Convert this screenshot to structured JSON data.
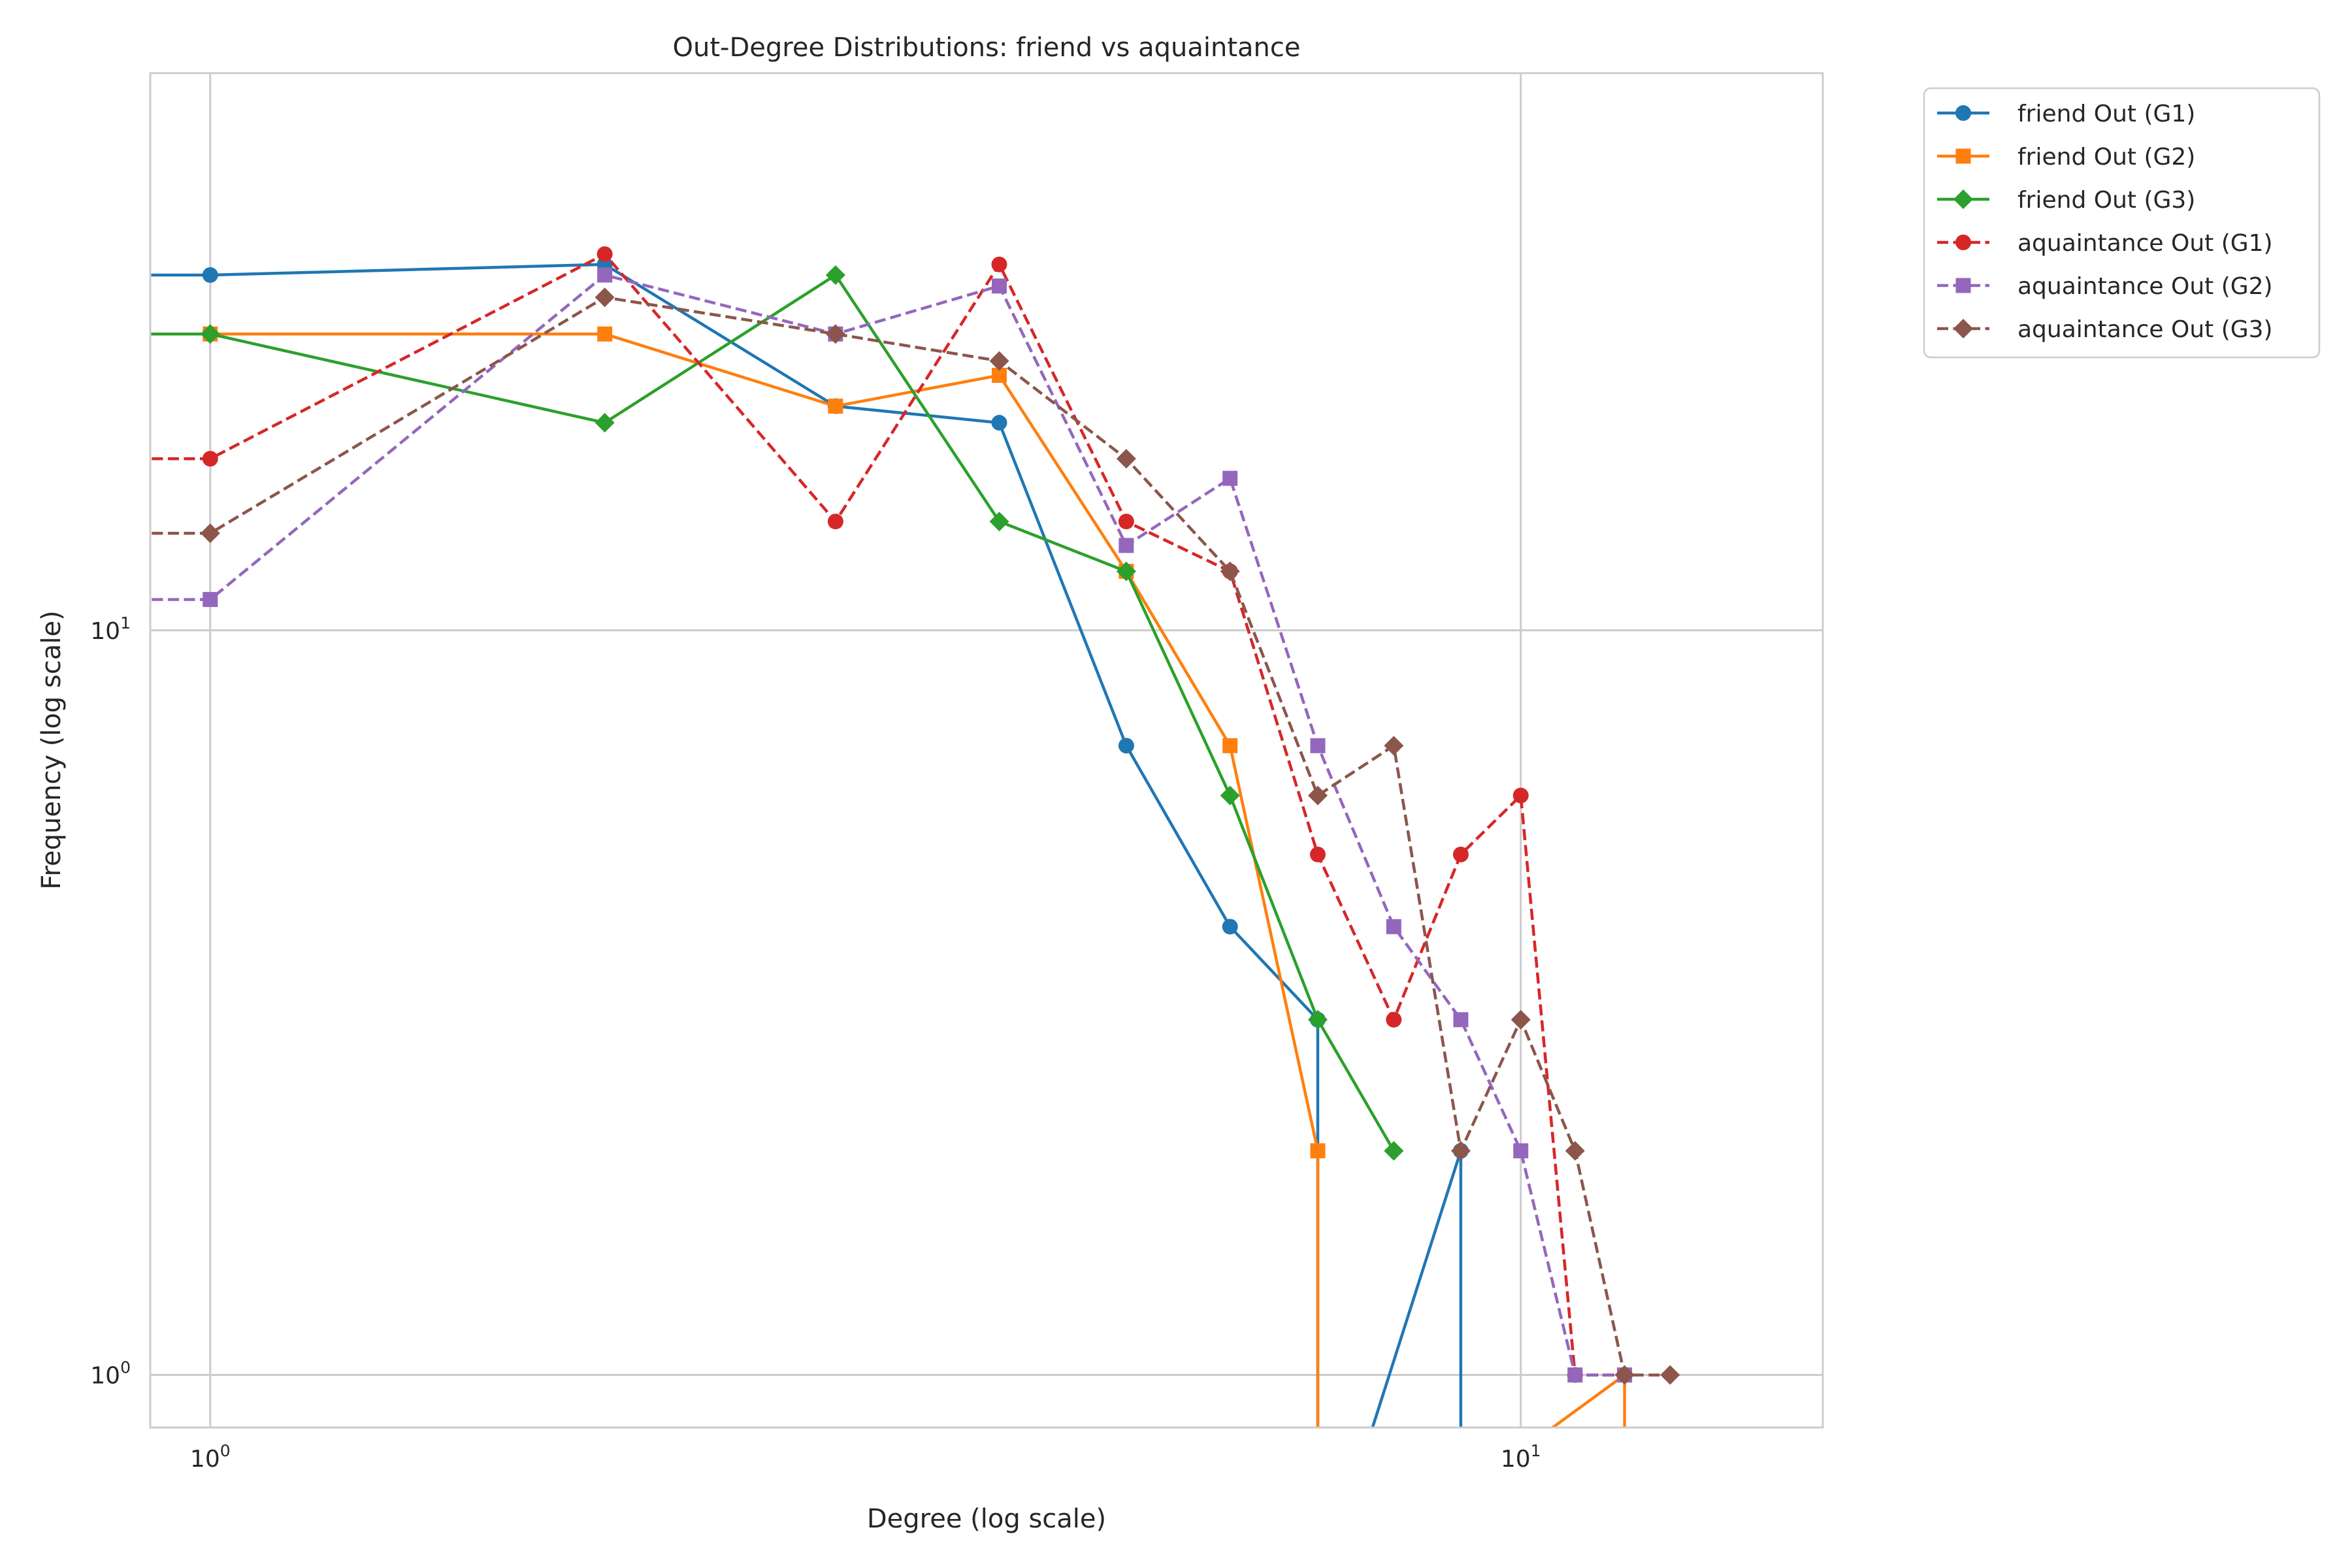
{
  "chart_data": {
    "type": "line",
    "title": "Out-Degree Distributions: friend vs aquaintance",
    "xlabel": "Degree (log scale)",
    "ylabel": "Frequency (log scale)",
    "xscale": "log",
    "yscale": "log",
    "xlim": [
      0.9,
      17
    ],
    "ylim": [
      0.85,
      56
    ],
    "grid": true,
    "legend_placement": "outside upper right",
    "x_ticks": [
      {
        "value": 1,
        "base": "10",
        "exp": "0"
      },
      {
        "value": 10,
        "base": "10",
        "exp": "1"
      }
    ],
    "y_ticks": [
      {
        "value": 1,
        "base": "10",
        "exp": "0"
      },
      {
        "value": 10,
        "base": "10",
        "exp": "1"
      }
    ],
    "series": [
      {
        "name": "friend Out (G1)",
        "color": "#1f77b4",
        "marker": "circle",
        "linestyle": "solid",
        "x": [
          0.5,
          1,
          2,
          3,
          4,
          5,
          6,
          7,
          7,
          9,
          9
        ],
        "y": [
          30,
          30,
          31,
          20,
          19,
          7,
          4,
          3,
          0.5,
          2,
          0.5
        ]
      },
      {
        "name": "friend Out (G2)",
        "color": "#ff7f0e",
        "marker": "square",
        "linestyle": "solid",
        "x": [
          0.5,
          1,
          2,
          3,
          4,
          5,
          6,
          7,
          7,
          12,
          12
        ],
        "y": [
          25,
          25,
          25,
          20,
          22,
          12,
          7,
          2,
          0.5,
          1,
          0.5
        ]
      },
      {
        "name": "friend Out (G3)",
        "color": "#2ca02c",
        "marker": "diamond",
        "linestyle": "solid",
        "x": [
          0.5,
          1,
          2,
          3,
          4,
          5,
          6,
          7,
          8
        ],
        "y": [
          25,
          25,
          19,
          30,
          14,
          12,
          6,
          3,
          2
        ]
      },
      {
        "name": "aquaintance Out (G1)",
        "color": "#d62728",
        "marker": "circle",
        "linestyle": "dashed",
        "x": [
          0.5,
          1,
          2,
          3,
          4,
          5,
          6,
          7,
          8,
          9,
          10,
          11,
          12
        ],
        "y": [
          17,
          17,
          32,
          14,
          31,
          14,
          12,
          5,
          3,
          5,
          6,
          1,
          1
        ]
      },
      {
        "name": "aquaintance Out (G2)",
        "color": "#9467bd",
        "marker": "square",
        "linestyle": "dashed",
        "x": [
          0.5,
          1,
          2,
          3,
          4,
          5,
          6,
          7,
          8,
          9,
          10,
          11,
          12
        ],
        "y": [
          11,
          11,
          30,
          25,
          29,
          13,
          16,
          7,
          4,
          3,
          2,
          1,
          1
        ]
      },
      {
        "name": "aquaintance Out (G3)",
        "color": "#8c564b",
        "marker": "diamond",
        "linestyle": "dashed",
        "x": [
          0.5,
          1,
          2,
          3,
          4,
          5,
          6,
          7,
          8,
          9,
          10,
          11,
          12,
          13
        ],
        "y": [
          13.5,
          13.5,
          28,
          25,
          23,
          17,
          12,
          6,
          7,
          2,
          3,
          2,
          1,
          1
        ]
      }
    ]
  }
}
